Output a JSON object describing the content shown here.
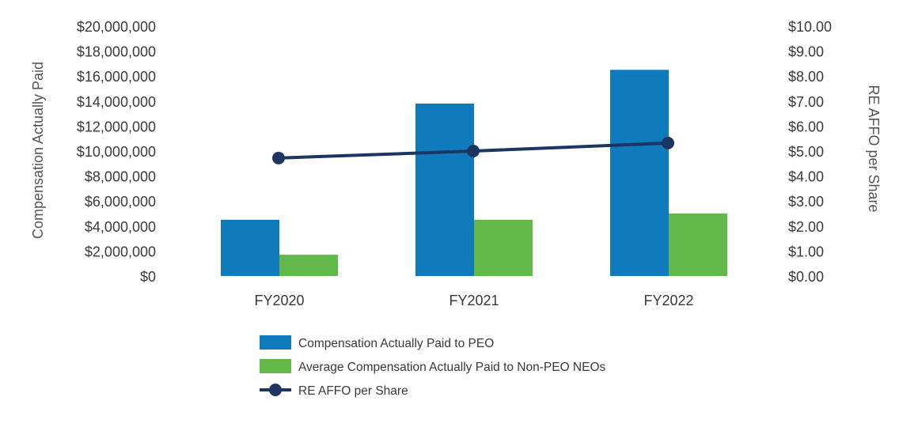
{
  "chart_data": {
    "type": "bar",
    "categories": [
      "FY2020",
      "FY2021",
      "FY2022"
    ],
    "series": [
      {
        "name": "Compensation Actually Paid to PEO",
        "kind": "bar",
        "axis": "left",
        "color": "#0f7bbd",
        "values": [
          4500000,
          13800000,
          16500000
        ]
      },
      {
        "name": "Average Compensation Actually Paid to Non-PEO NEOs",
        "kind": "bar",
        "axis": "left",
        "color": "#62b94a",
        "values": [
          1700000,
          4500000,
          5000000
        ]
      },
      {
        "name": "RE AFFO per Share",
        "kind": "line",
        "axis": "right",
        "color": "#1c3661",
        "values": [
          4.72,
          5.0,
          5.32
        ]
      }
    ],
    "ylabel": "Compensation Actually Paid",
    "y2label": "RE AFFO per Share",
    "ylim": [
      0,
      20000000
    ],
    "y2lim": [
      0,
      10
    ],
    "yticks": [
      "$0",
      "$2,000,000",
      "$4,000,000",
      "$6,000,000",
      "$8,000,000",
      "$10,000,000",
      "$12,000,000",
      "$14,000,000",
      "$16,000,000",
      "$18,000,000",
      "$20,000,000"
    ],
    "y2ticks": [
      "$0.00",
      "$1.00",
      "$2.00",
      "$3.00",
      "$4.00",
      "$5.00",
      "$6.00",
      "$7.00",
      "$8.00",
      "$9.00",
      "$10.00"
    ],
    "grid": false,
    "legend_position": "bottom"
  }
}
